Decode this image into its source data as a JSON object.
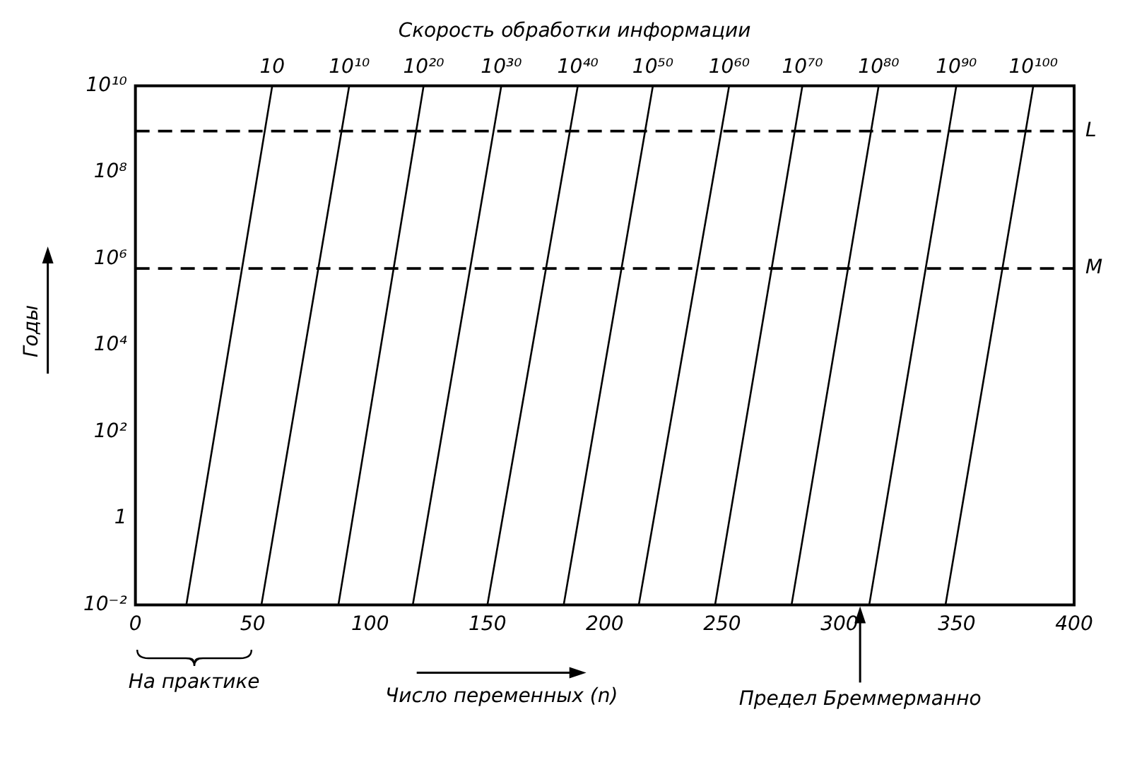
{
  "chart_data": {
    "type": "line",
    "title": "Скорость обработки информации",
    "xlabel": "Число переменных (n)",
    "ylabel": "Годы",
    "log": "y",
    "grid": false,
    "xlim": [
      0,
      400
    ],
    "xticks": [
      0,
      50,
      100,
      150,
      200,
      250,
      300,
      350,
      400
    ],
    "ylim": [
      0.01,
      10000000000
    ],
    "yticks": [
      {
        "value": 0.01,
        "label": "10⁻²"
      },
      1,
      {
        "value": 100,
        "label": "10²"
      },
      {
        "value": 10000,
        "label": "10⁴"
      },
      {
        "value": 1000000,
        "label": "10⁶"
      },
      {
        "value": 100000000,
        "label": "10⁸"
      },
      {
        "value": 10000000000,
        "label": "10¹⁰"
      }
    ],
    "series": [
      {
        "name": "10",
        "color": "#000000",
        "x": [
          21.7,
          58.3
        ],
        "values": [
          0.01,
          10000000000
        ]
      },
      {
        "name": "10¹⁰",
        "color": "#000000",
        "x": [
          53.7,
          91.1
        ],
        "values": [
          0.01,
          10000000000
        ]
      },
      {
        "name": "10²⁰",
        "color": "#000000",
        "x": [
          86.5,
          122.8
        ],
        "values": [
          0.01,
          10000000000
        ]
      },
      {
        "name": "10³⁰",
        "color": "#000000",
        "x": [
          118.2,
          155.9
        ],
        "values": [
          0.01,
          10000000000
        ]
      },
      {
        "name": "10⁴⁰",
        "color": "#000000",
        "x": [
          150,
          188.5
        ],
        "values": [
          0.01,
          10000000000
        ]
      },
      {
        "name": "10⁵⁰",
        "color": "#000000",
        "x": [
          182.5,
          220.5
        ],
        "values": [
          0.01,
          10000000000
        ]
      },
      {
        "name": "10⁶⁰",
        "color": "#000000",
        "x": [
          214.5,
          253
        ],
        "values": [
          0.01,
          10000000000
        ]
      },
      {
        "name": "10⁷⁰",
        "color": "#000000",
        "x": [
          247,
          284.2
        ],
        "values": [
          0.01,
          10000000000
        ]
      },
      {
        "name": "10⁸⁰",
        "color": "#000000",
        "x": [
          279.6,
          316.7
        ],
        "values": [
          0.01,
          10000000000
        ]
      },
      {
        "name": "10⁹⁰",
        "color": "#000000",
        "x": [
          312.7,
          349.8
        ],
        "values": [
          0.01,
          10000000000
        ]
      },
      {
        "name": "10¹⁰⁰",
        "color": "#000000",
        "x": [
          345.2,
          382.6
        ],
        "values": [
          0.01,
          10000000000
        ]
      }
    ],
    "ref_lines": [
      {
        "axis": "y",
        "value": 900000000,
        "label": "L",
        "line_style": "dashed",
        "color": "#000000"
      },
      {
        "axis": "y",
        "value": 600000,
        "label": "M",
        "line_style": "dashed",
        "color": "#000000"
      }
    ],
    "annotations": [
      "На практике",
      "Предел Бреммерманно"
    ]
  }
}
